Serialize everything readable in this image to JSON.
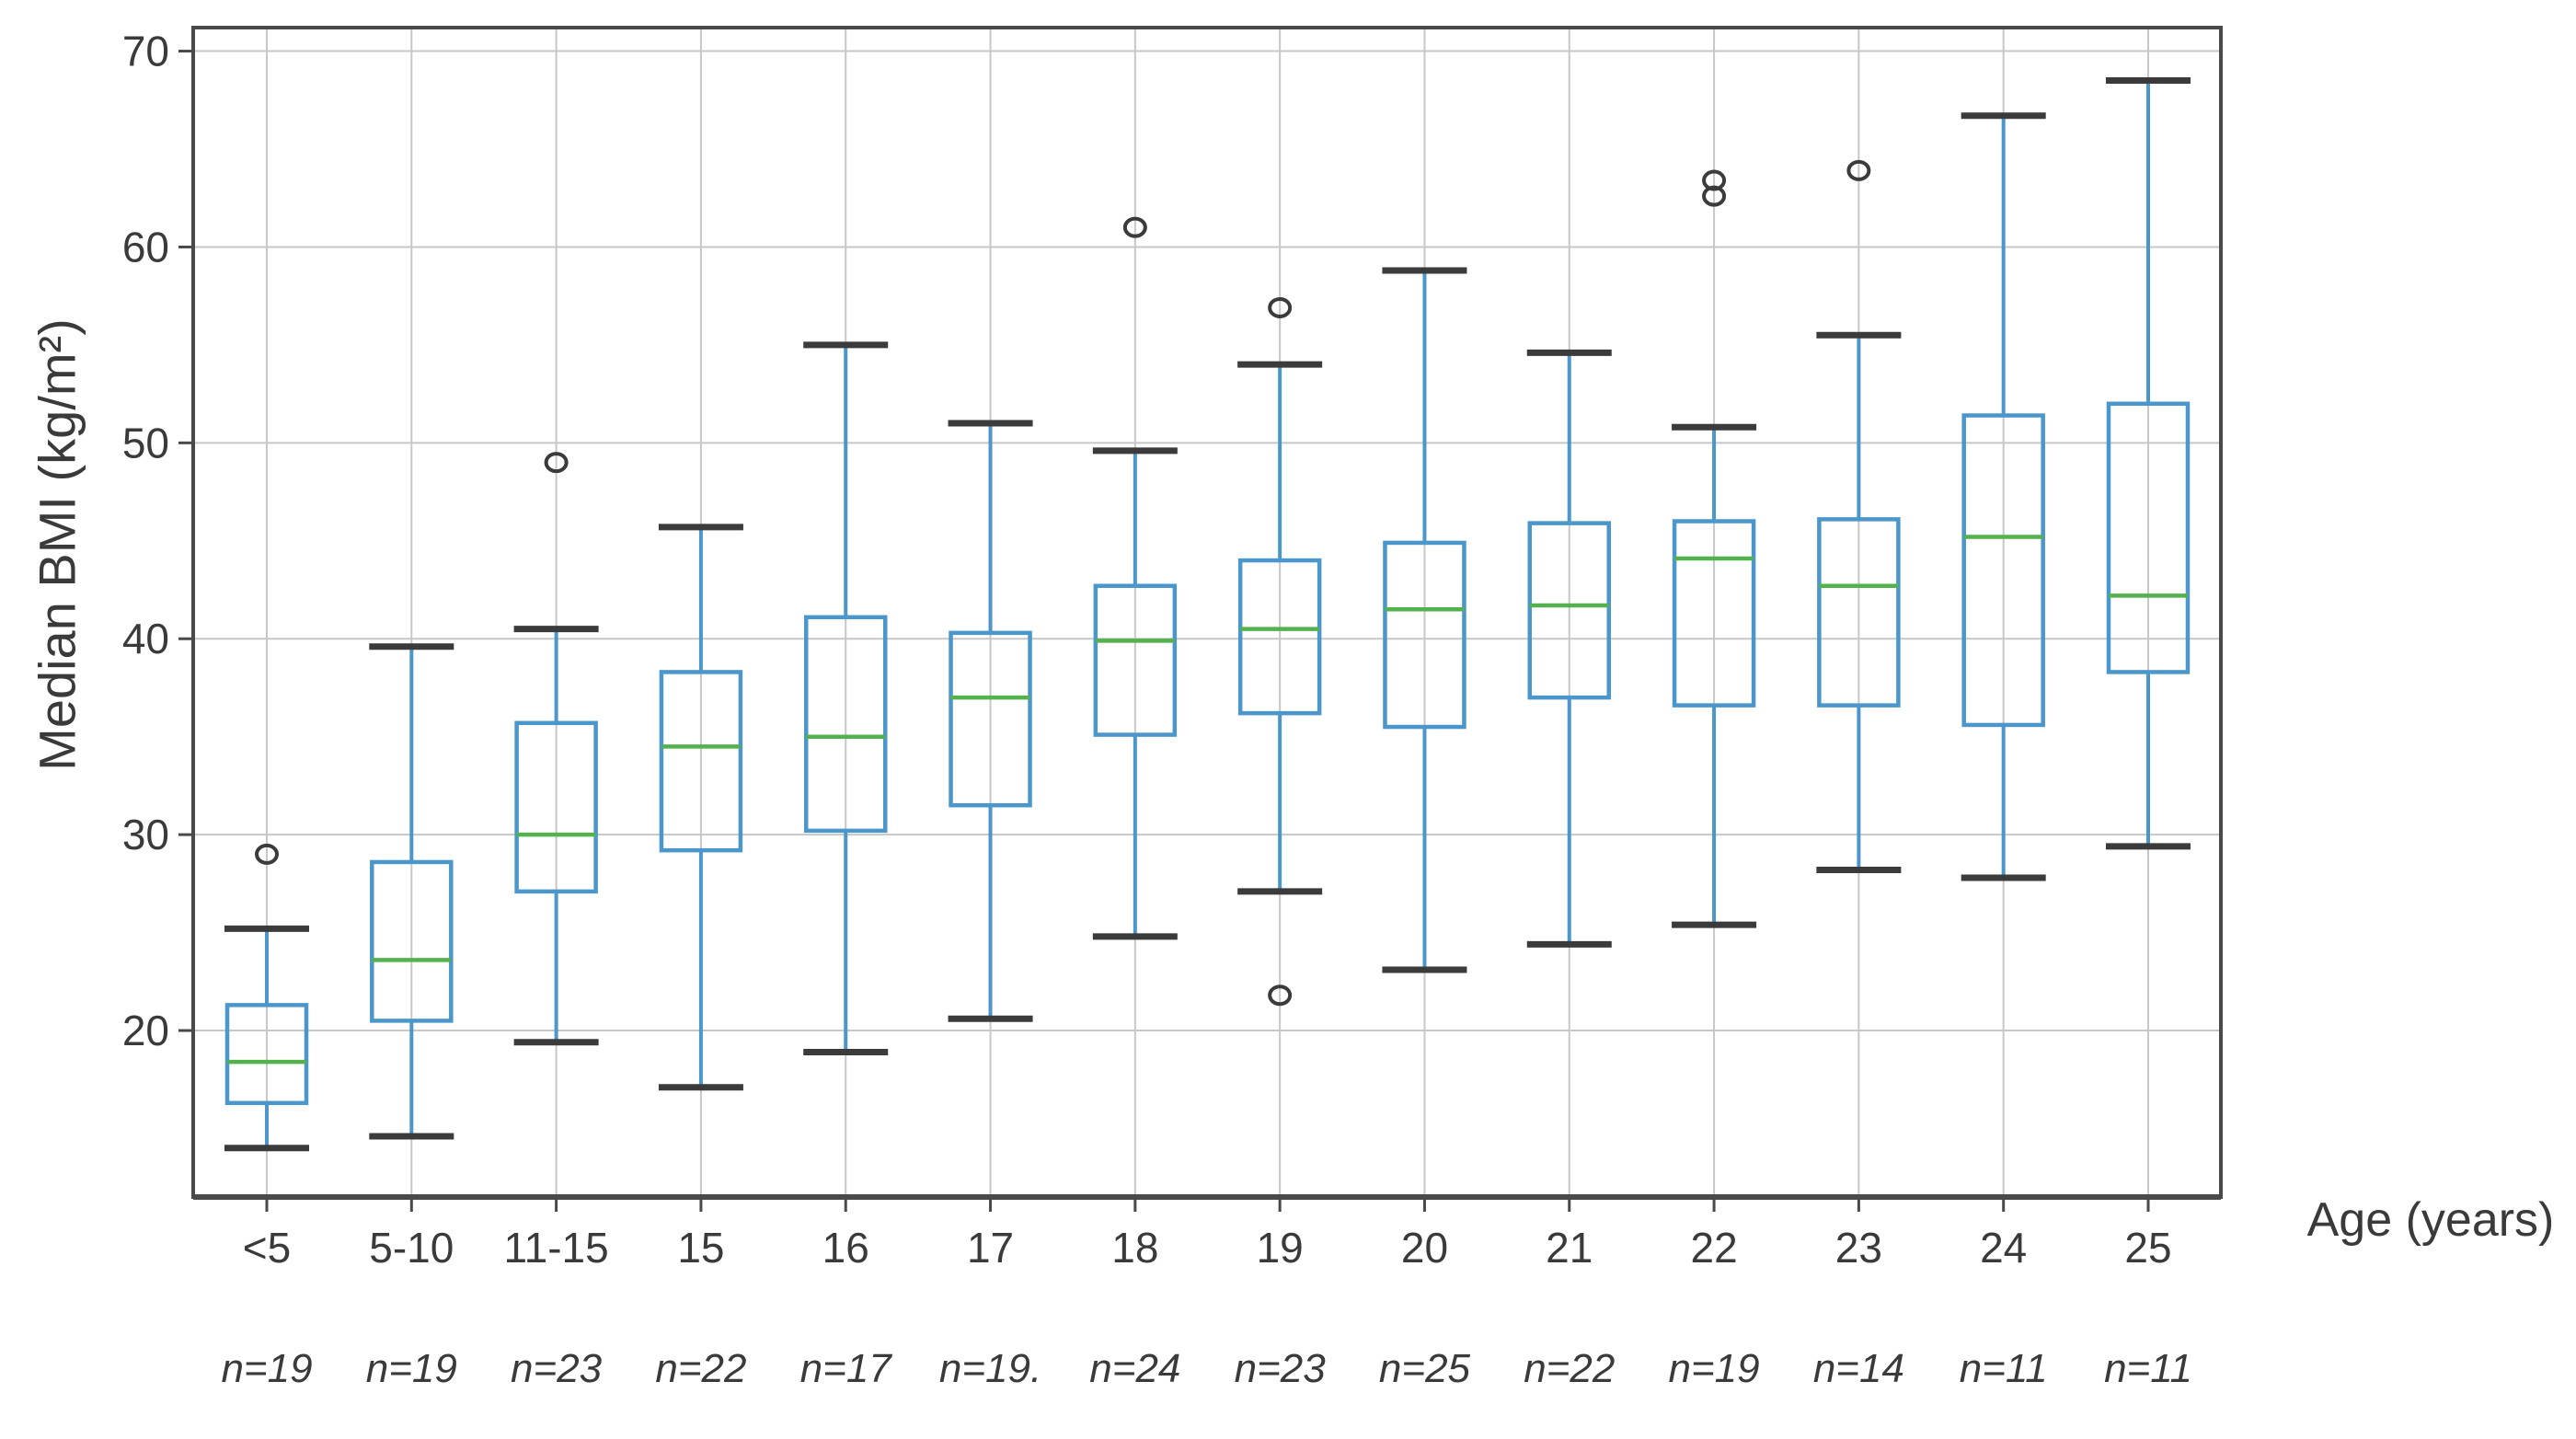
{
  "chart_data": {
    "type": "box",
    "title": "",
    "ylabel": "Median BMI (kg/m²)",
    "xlabel": "Age (years)",
    "yticks": [
      20,
      30,
      40,
      50,
      60,
      70
    ],
    "ylim": [
      11.5,
      71.2
    ],
    "grid": true,
    "legend": "none",
    "categories": [
      "<5",
      "5-10",
      "11-15",
      "15",
      "16",
      "17",
      "18",
      "19",
      "20",
      "21",
      "22",
      "23",
      "24",
      "25"
    ],
    "n_labels": [
      "n=19",
      "n=19",
      "n=23",
      "n=22",
      "n=17",
      "n=19.",
      "n=24",
      "n=23",
      "n=25",
      "n=22",
      "n=19",
      "n=14",
      "n=11",
      "n=11"
    ],
    "boxes": [
      {
        "label": "<5",
        "whislo": 14.0,
        "q1": 16.3,
        "med": 18.4,
        "q3": 21.3,
        "whishi": 25.2,
        "outliers": [
          29.0
        ]
      },
      {
        "label": "5-10",
        "whislo": 14.6,
        "q1": 20.5,
        "med": 23.6,
        "q3": 28.6,
        "whishi": 39.6,
        "outliers": []
      },
      {
        "label": "11-15",
        "whislo": 19.4,
        "q1": 27.1,
        "med": 30.0,
        "q3": 35.7,
        "whishi": 40.5,
        "outliers": [
          49.0
        ]
      },
      {
        "label": "15",
        "whislo": 17.1,
        "q1": 29.2,
        "med": 34.5,
        "q3": 38.3,
        "whishi": 45.7,
        "outliers": []
      },
      {
        "label": "16",
        "whislo": 18.9,
        "q1": 30.2,
        "med": 35.0,
        "q3": 41.1,
        "whishi": 55.0,
        "outliers": []
      },
      {
        "label": "17",
        "whislo": 20.6,
        "q1": 31.5,
        "med": 37.0,
        "q3": 40.3,
        "whishi": 51.0,
        "outliers": []
      },
      {
        "label": "18",
        "whislo": 24.8,
        "q1": 35.1,
        "med": 39.9,
        "q3": 42.7,
        "whishi": 49.6,
        "outliers": [
          61.0
        ]
      },
      {
        "label": "19",
        "whislo": 27.1,
        "q1": 36.2,
        "med": 40.5,
        "q3": 44.0,
        "whishi": 54.0,
        "outliers": [
          56.9,
          21.8
        ]
      },
      {
        "label": "20",
        "whislo": 23.1,
        "q1": 35.5,
        "med": 41.5,
        "q3": 44.9,
        "whishi": 58.8,
        "outliers": []
      },
      {
        "label": "21",
        "whislo": 24.4,
        "q1": 37.0,
        "med": 41.7,
        "q3": 45.9,
        "whishi": 54.6,
        "outliers": []
      },
      {
        "label": "22",
        "whislo": 25.4,
        "q1": 36.6,
        "med": 44.1,
        "q3": 46.0,
        "whishi": 50.8,
        "outliers": [
          62.6,
          63.4
        ]
      },
      {
        "label": "23",
        "whislo": 28.2,
        "q1": 36.6,
        "med": 42.7,
        "q3": 46.1,
        "whishi": 55.5,
        "outliers": [
          63.9
        ]
      },
      {
        "label": "24",
        "whislo": 27.8,
        "q1": 35.6,
        "med": 45.2,
        "q3": 51.4,
        "whishi": 66.7,
        "outliers": []
      },
      {
        "label": "25",
        "whislo": 29.4,
        "q1": 38.3,
        "med": 42.2,
        "q3": 52.0,
        "whishi": 68.5,
        "outliers": []
      }
    ],
    "colors": {
      "box": "#4b97cb",
      "median": "#53b14e",
      "caps": "#3b3b3b",
      "outlier": "#3b3b3b",
      "grid": "#c7c7c7",
      "spine": "#4a4a4a",
      "text": "#3a3a3a",
      "background": "#ffffff"
    }
  }
}
